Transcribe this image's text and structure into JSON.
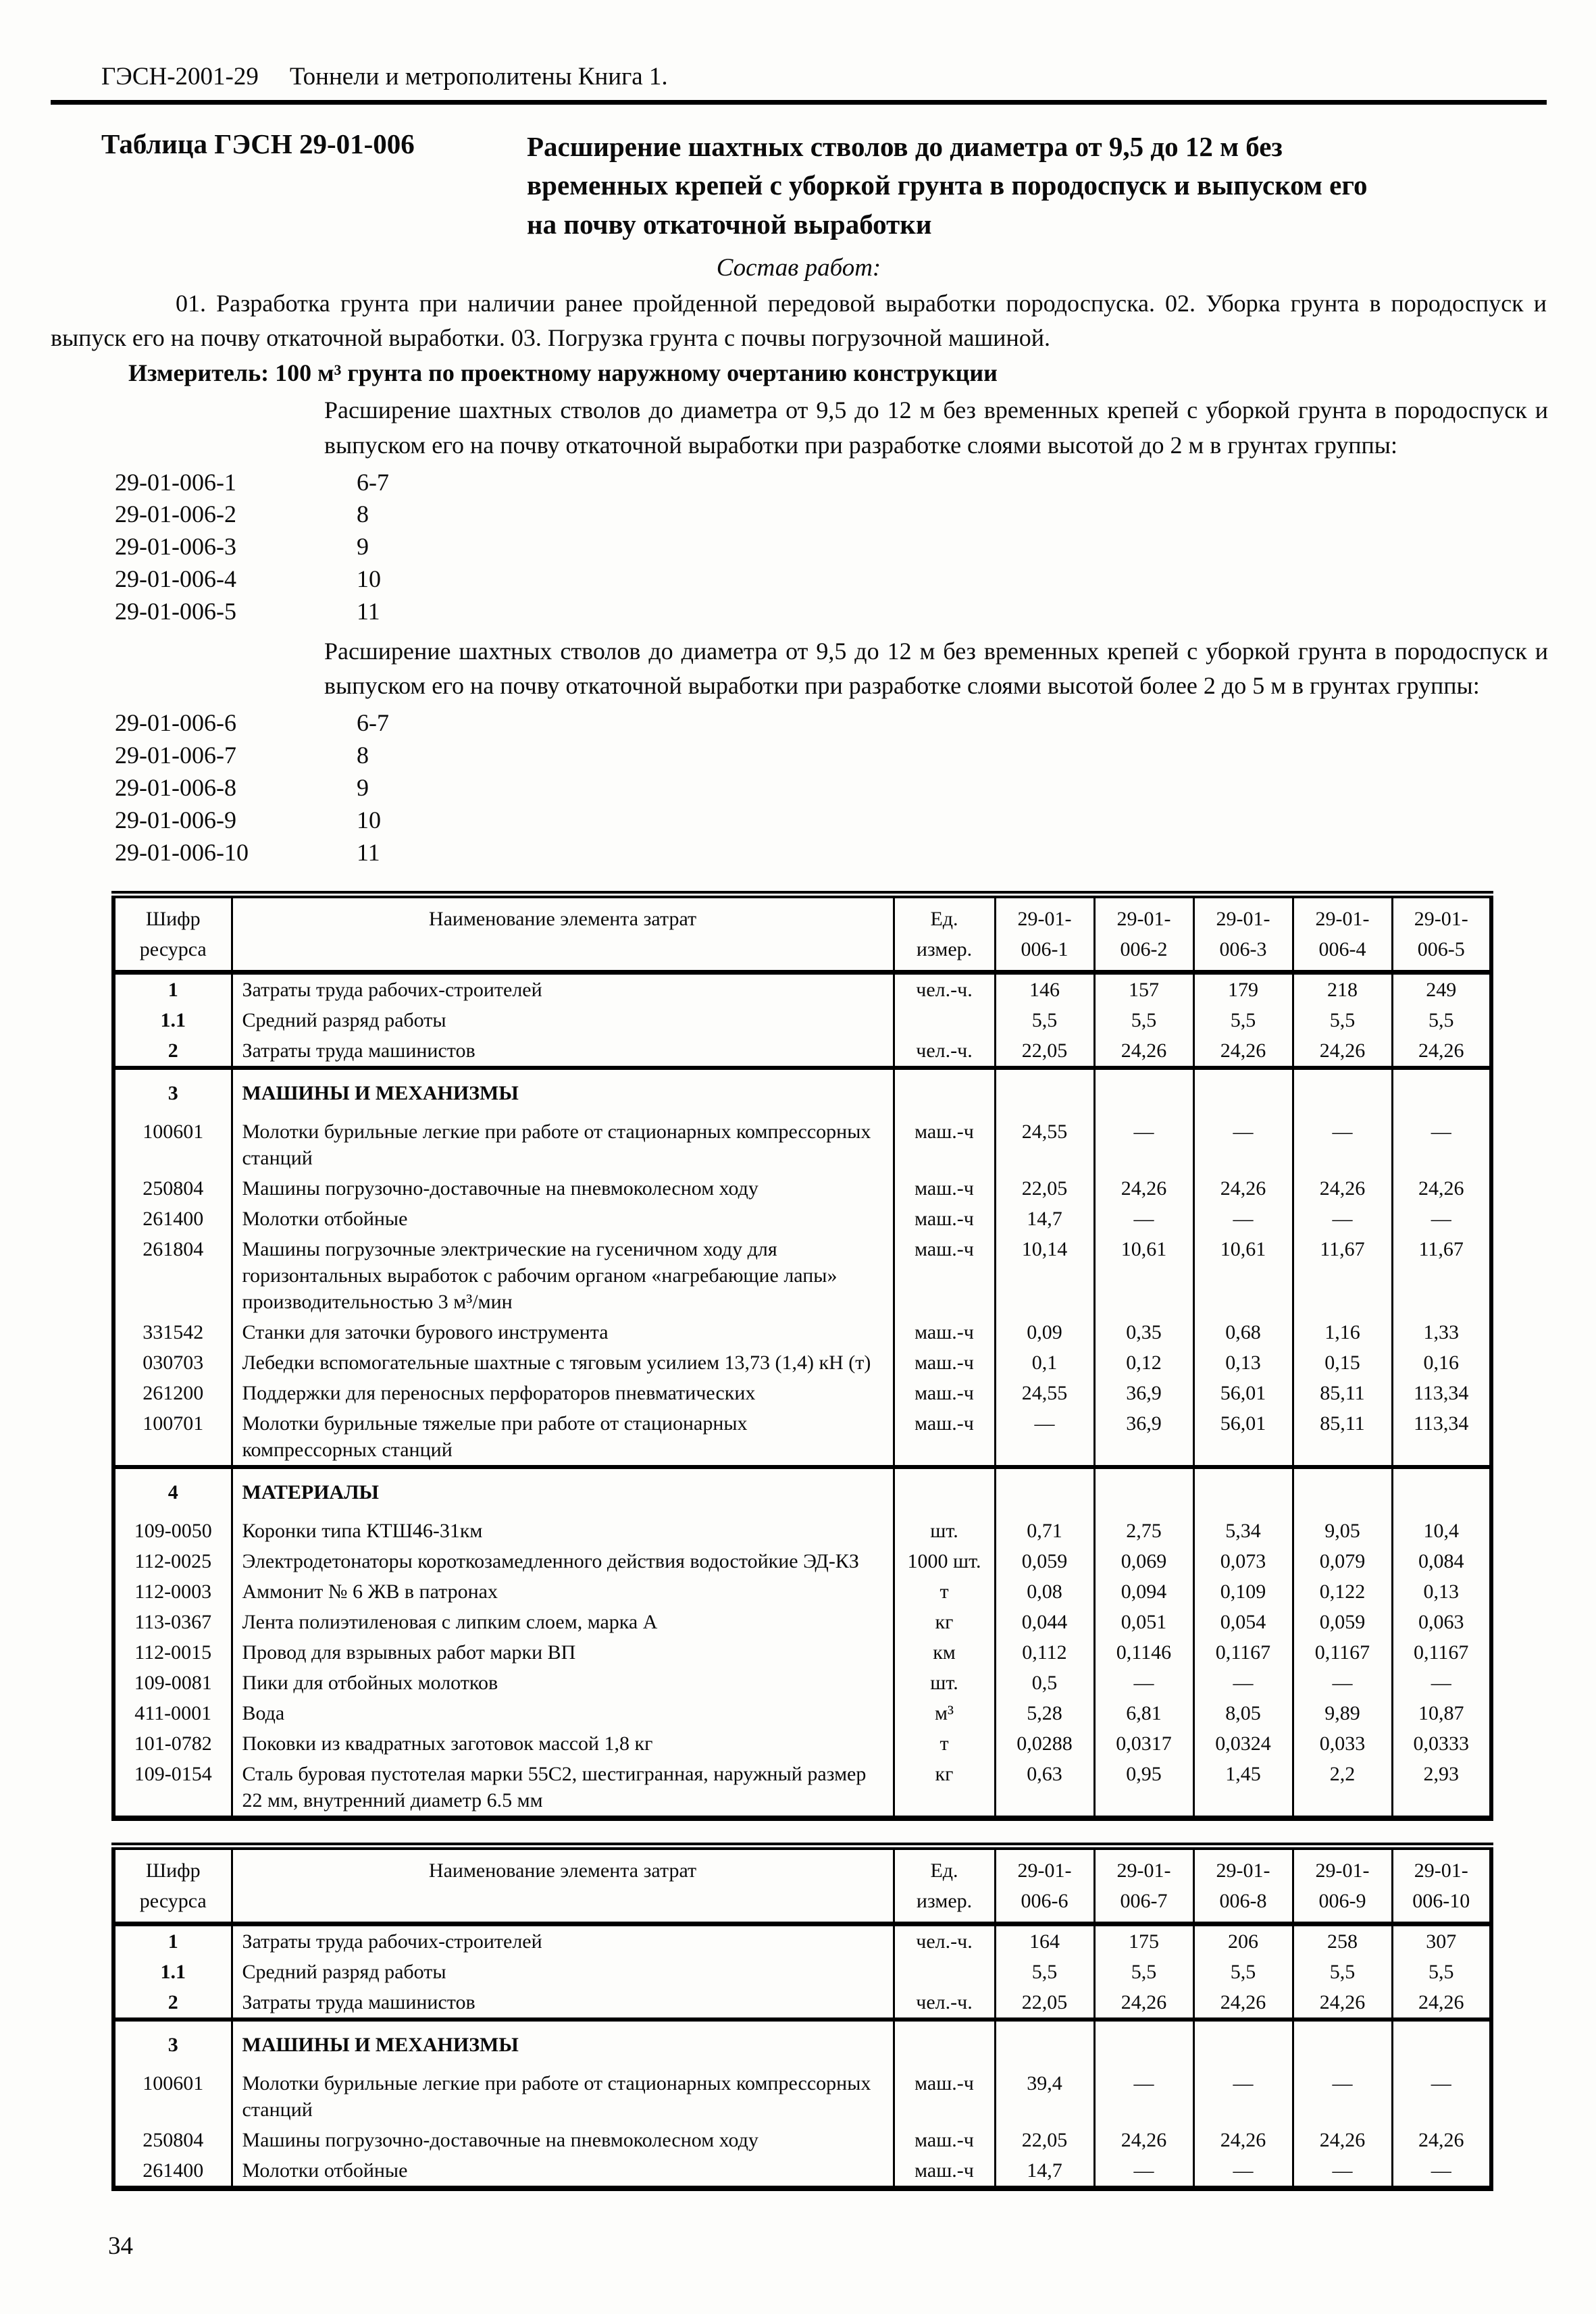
{
  "header": {
    "code": "ГЭСН-2001-29",
    "book": "Тоннели и метрополитены Книга 1."
  },
  "title_block": {
    "label": "Таблица ГЭСН 29-01-006",
    "title": "Расширение шахтных стволов до диаметра от 9,5 до 12 м без временных крепей с уборкой грунта в породоспуск и выпуском его на почву откаточной выработки"
  },
  "sostav": {
    "heading": "Состав работ:",
    "text": "01. Разработка грунта при наличии ранее пройденной передовой выработки породоспуска. 02. Уборка грунта в породоспуск и выпуск его на почву откаточной выработки. 03. Погрузка грунта с почвы погрузочной машиной."
  },
  "izmeritel": "Измеритель: 100 м³ грунта по проектному наружному очертанию конструкции",
  "groups": [
    {
      "description": "Расширение шахтных стволов до диаметра от 9,5 до 12 м без временных крепей с уборкой грунта в породоспуск и выпуском его на почву откаточной выработки при разработке слоями высотой до 2 м в грунтах группы:",
      "items": [
        {
          "code": "29-01-006-1",
          "group": "6-7"
        },
        {
          "code": "29-01-006-2",
          "group": "8"
        },
        {
          "code": "29-01-006-3",
          "group": "9"
        },
        {
          "code": "29-01-006-4",
          "group": "10"
        },
        {
          "code": "29-01-006-5",
          "group": "11"
        }
      ]
    },
    {
      "description": "Расширение шахтных стволов до диаметра от 9,5 до 12 м без временных крепей с уборкой грунта в породоспуск и выпуском его на почву откаточной выработки при разработке слоями высотой более 2 до 5 м в грунтах группы:",
      "items": [
        {
          "code": "29-01-006-6",
          "group": "6-7"
        },
        {
          "code": "29-01-006-7",
          "group": "8"
        },
        {
          "code": "29-01-006-8",
          "group": "9"
        },
        {
          "code": "29-01-006-9",
          "group": "10"
        },
        {
          "code": "29-01-006-10",
          "group": "11"
        }
      ]
    }
  ],
  "tables": [
    {
      "columns": [
        "Шифр\nресурса",
        "Наименование элемента затрат",
        "Ед.\nизмер.",
        "29-01-\n006-1",
        "29-01-\n006-2",
        "29-01-\n006-3",
        "29-01-\n006-4",
        "29-01-\n006-5"
      ],
      "rows": [
        {
          "code": "1",
          "code_bold": true,
          "name": "Затраты труда рабочих-строителей",
          "unit": "чел.-ч.",
          "values": [
            "146",
            "157",
            "179",
            "218",
            "249"
          ]
        },
        {
          "code": "1.1",
          "code_bold": true,
          "name": "Средний разряд работы",
          "unit": "",
          "values": [
            "5,5",
            "5,5",
            "5,5",
            "5,5",
            "5,5"
          ]
        },
        {
          "code": "2",
          "code_bold": true,
          "name": "Затраты труда машинистов",
          "unit": "чел.-ч.",
          "values": [
            "22,05",
            "24,26",
            "24,26",
            "24,26",
            "24,26"
          ]
        },
        {
          "code": "3",
          "code_bold": true,
          "section": true,
          "name": "МАШИНЫ И МЕХАНИЗМЫ",
          "unit": "",
          "values": [
            "",
            "",
            "",
            "",
            ""
          ]
        },
        {
          "code": "100601",
          "name": "Молотки бурильные легкие при работе от стационарных компрессорных станций",
          "unit": "маш.-ч",
          "values": [
            "24,55",
            "—",
            "—",
            "—",
            "—"
          ]
        },
        {
          "code": "250804",
          "name": "Машины погрузочно-доставочные на пневмоколесном ходу",
          "unit": "маш.-ч",
          "values": [
            "22,05",
            "24,26",
            "24,26",
            "24,26",
            "24,26"
          ]
        },
        {
          "code": "261400",
          "name": "Молотки отбойные",
          "unit": "маш.-ч",
          "values": [
            "14,7",
            "—",
            "—",
            "—",
            "—"
          ]
        },
        {
          "code": "261804",
          "name": "Машины погрузочные электрические на гусеничном ходу для горизонтальных выработок с рабочим органом «нагребающие лапы» производительностью 3 м³/мин",
          "unit": "маш.-ч",
          "values": [
            "10,14",
            "10,61",
            "10,61",
            "11,67",
            "11,67"
          ]
        },
        {
          "code": "331542",
          "name": "Станки для заточки бурового инструмента",
          "unit": "маш.-ч",
          "values": [
            "0,09",
            "0,35",
            "0,68",
            "1,16",
            "1,33"
          ]
        },
        {
          "code": "030703",
          "name": "Лебедки вспомогательные шахтные с тяговым усилием 13,73 (1,4) кН (т)",
          "unit": "маш.-ч",
          "values": [
            "0,1",
            "0,12",
            "0,13",
            "0,15",
            "0,16"
          ]
        },
        {
          "code": "261200",
          "name": "Поддержки для переносных перфораторов пневматических",
          "unit": "маш.-ч",
          "values": [
            "24,55",
            "36,9",
            "56,01",
            "85,11",
            "113,34"
          ]
        },
        {
          "code": "100701",
          "name": "Молотки бурильные тяжелые при работе от стационарных компрессорных станций",
          "unit": "маш.-ч",
          "values": [
            "—",
            "36,9",
            "56,01",
            "85,11",
            "113,34"
          ]
        },
        {
          "code": "4",
          "code_bold": true,
          "section": true,
          "name": "МАТЕРИАЛЫ",
          "unit": "",
          "values": [
            "",
            "",
            "",
            "",
            ""
          ]
        },
        {
          "code": "109-0050",
          "name": "Коронки типа КТШ46-31км",
          "unit": "шт.",
          "values": [
            "0,71",
            "2,75",
            "5,34",
            "9,05",
            "10,4"
          ]
        },
        {
          "code": "112-0025",
          "name": "Электродетонаторы короткозамедленного действия водостойкие ЭД-КЗ",
          "unit": "1000 шт.",
          "values": [
            "0,059",
            "0,069",
            "0,073",
            "0,079",
            "0,084"
          ]
        },
        {
          "code": "112-0003",
          "name": "Аммонит № 6 ЖВ в патронах",
          "unit": "т",
          "values": [
            "0,08",
            "0,094",
            "0,109",
            "0,122",
            "0,13"
          ]
        },
        {
          "code": "113-0367",
          "name": "Лента полиэтиленовая с липким слоем, марка А",
          "unit": "кг",
          "values": [
            "0,044",
            "0,051",
            "0,054",
            "0,059",
            "0,063"
          ]
        },
        {
          "code": "112-0015",
          "name": "Провод для взрывных работ марки ВП",
          "unit": "км",
          "values": [
            "0,112",
            "0,1146",
            "0,1167",
            "0,1167",
            "0,1167"
          ]
        },
        {
          "code": "109-0081",
          "name": "Пики для отбойных молотков",
          "unit": "шт.",
          "values": [
            "0,5",
            "—",
            "—",
            "—",
            "—"
          ]
        },
        {
          "code": "411-0001",
          "name": "Вода",
          "unit": "м³",
          "values": [
            "5,28",
            "6,81",
            "8,05",
            "9,89",
            "10,87"
          ]
        },
        {
          "code": "101-0782",
          "name": "Поковки из квадратных заготовок массой 1,8 кг",
          "unit": "т",
          "values": [
            "0,0288",
            "0,0317",
            "0,0324",
            "0,033",
            "0,0333"
          ]
        },
        {
          "code": "109-0154",
          "name": "Сталь буровая пустотелая марки 55С2, шестигранная, наружный размер 22 мм, внутренний диаметр 6.5 мм",
          "unit": "кг",
          "values": [
            "0,63",
            "0,95",
            "1,45",
            "2,2",
            "2,93"
          ]
        }
      ]
    },
    {
      "columns": [
        "Шифр\nресурса",
        "Наименование элемента затрат",
        "Ед.\nизмер.",
        "29-01-\n006-6",
        "29-01-\n006-7",
        "29-01-\n006-8",
        "29-01-\n006-9",
        "29-01-\n006-10"
      ],
      "rows": [
        {
          "code": "1",
          "code_bold": true,
          "name": "Затраты труда рабочих-строителей",
          "unit": "чел.-ч.",
          "values": [
            "164",
            "175",
            "206",
            "258",
            "307"
          ]
        },
        {
          "code": "1.1",
          "code_bold": true,
          "name": "Средний разряд работы",
          "unit": "",
          "values": [
            "5,5",
            "5,5",
            "5,5",
            "5,5",
            "5,5"
          ]
        },
        {
          "code": "2",
          "code_bold": true,
          "name": "Затраты труда машинистов",
          "unit": "чел.-ч.",
          "values": [
            "22,05",
            "24,26",
            "24,26",
            "24,26",
            "24,26"
          ]
        },
        {
          "code": "3",
          "code_bold": true,
          "section": true,
          "name": "МАШИНЫ И МЕХАНИЗМЫ",
          "unit": "",
          "values": [
            "",
            "",
            "",
            "",
            ""
          ]
        },
        {
          "code": "100601",
          "name": "Молотки бурильные легкие при работе от стационарных компрессорных станций",
          "unit": "маш.-ч",
          "values": [
            "39,4",
            "—",
            "—",
            "—",
            "—"
          ]
        },
        {
          "code": "250804",
          "name": "Машины погрузочно-доставочные на пневмоколесном ходу",
          "unit": "маш.-ч",
          "values": [
            "22,05",
            "24,26",
            "24,26",
            "24,26",
            "24,26"
          ]
        },
        {
          "code": "261400",
          "name": "Молотки отбойные",
          "unit": "маш.-ч",
          "values": [
            "14,7",
            "—",
            "—",
            "—",
            "—"
          ]
        }
      ]
    }
  ],
  "page_number": "34"
}
